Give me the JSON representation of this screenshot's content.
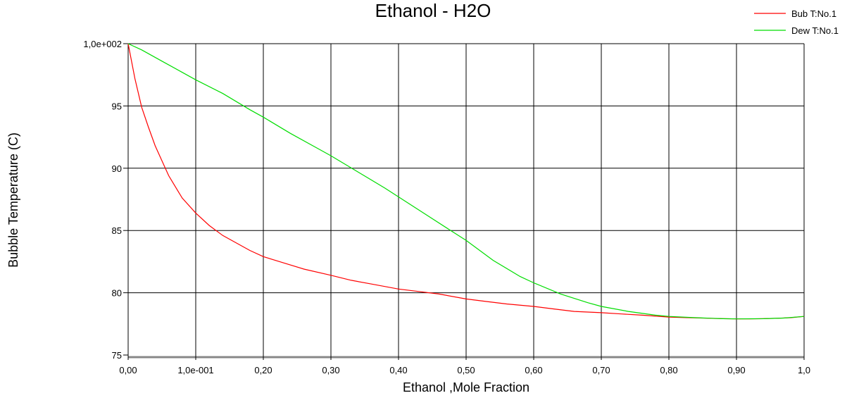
{
  "chart_data": {
    "type": "line",
    "title": "Ethanol - H2O",
    "xlabel": "Ethanol ,Mole Fraction",
    "ylabel": "Bubble Temperature (C)",
    "xlim": [
      0,
      1
    ],
    "ylim": [
      75,
      100
    ],
    "grid": true,
    "legend_position": "top-right",
    "x_ticks": [
      {
        "value": 0.0,
        "label": "0,00"
      },
      {
        "value": 0.1,
        "label": "1,0e-001"
      },
      {
        "value": 0.2,
        "label": "0,20"
      },
      {
        "value": 0.3,
        "label": "0,30"
      },
      {
        "value": 0.4,
        "label": "0,40"
      },
      {
        "value": 0.5,
        "label": "0,50"
      },
      {
        "value": 0.6,
        "label": "0,60"
      },
      {
        "value": 0.7,
        "label": "0,70"
      },
      {
        "value": 0.8,
        "label": "0,80"
      },
      {
        "value": 0.9,
        "label": "0,90"
      },
      {
        "value": 1.0,
        "label": "1,0"
      }
    ],
    "y_ticks": [
      {
        "value": 75,
        "label": "75"
      },
      {
        "value": 80,
        "label": "80"
      },
      {
        "value": 85,
        "label": "85"
      },
      {
        "value": 90,
        "label": "90"
      },
      {
        "value": 95,
        "label": "95"
      },
      {
        "value": 100,
        "label": "1,0e+002"
      }
    ],
    "series": [
      {
        "name": "Bub T:No.1",
        "color": "#ff0000",
        "x": [
          0.0,
          0.01,
          0.02,
          0.03,
          0.04,
          0.05,
          0.06,
          0.07,
          0.08,
          0.1,
          0.12,
          0.14,
          0.16,
          0.18,
          0.2,
          0.23,
          0.26,
          0.3,
          0.33,
          0.36,
          0.4,
          0.43,
          0.46,
          0.5,
          0.53,
          0.56,
          0.6,
          0.63,
          0.66,
          0.7,
          0.73,
          0.76,
          0.8,
          0.83,
          0.86,
          0.88,
          0.9,
          0.92,
          0.94,
          0.96,
          0.98,
          1.0
        ],
        "y": [
          100.0,
          97.2,
          94.9,
          93.3,
          91.8,
          90.6,
          89.4,
          88.5,
          87.6,
          86.4,
          85.4,
          84.6,
          84.0,
          83.4,
          82.9,
          82.4,
          81.9,
          81.4,
          81.0,
          80.7,
          80.3,
          80.1,
          79.9,
          79.5,
          79.3,
          79.1,
          78.9,
          78.7,
          78.5,
          78.4,
          78.3,
          78.2,
          78.05,
          78.0,
          77.95,
          77.92,
          77.9,
          77.9,
          77.92,
          77.95,
          78.0,
          78.1
        ]
      },
      {
        "name": "Dew T:No.1",
        "color": "#00dd00",
        "x": [
          0.0,
          0.02,
          0.05,
          0.08,
          0.1,
          0.14,
          0.18,
          0.2,
          0.24,
          0.28,
          0.3,
          0.34,
          0.38,
          0.4,
          0.44,
          0.48,
          0.5,
          0.54,
          0.58,
          0.6,
          0.64,
          0.68,
          0.7,
          0.74,
          0.78,
          0.8,
          0.84,
          0.88,
          0.9,
          0.94,
          0.97,
          1.0
        ],
        "y": [
          100.0,
          99.5,
          98.6,
          97.7,
          97.1,
          96.0,
          94.7,
          94.1,
          92.8,
          91.6,
          91.0,
          89.7,
          88.4,
          87.7,
          86.3,
          84.9,
          84.2,
          82.6,
          81.3,
          80.8,
          79.9,
          79.2,
          78.9,
          78.5,
          78.2,
          78.1,
          78.0,
          77.92,
          77.9,
          77.92,
          77.97,
          78.1
        ]
      }
    ]
  }
}
